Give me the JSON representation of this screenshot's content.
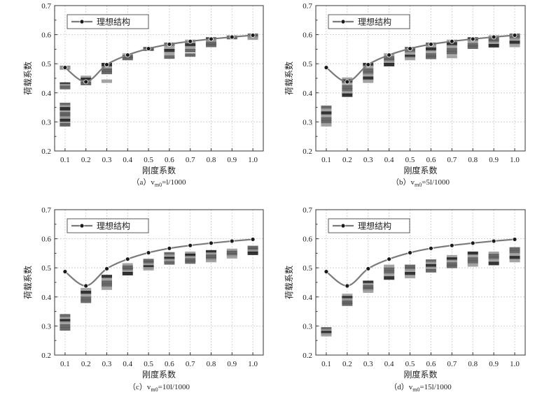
{
  "colors": {
    "curve": "#7a7a7a",
    "marker": "#1a1a1a",
    "grid": "#c8c8c8",
    "frame": "#333333",
    "bar_dark": "#1e1e1e",
    "bar_mid": "#5a5a5a",
    "bar_light": "#9a9a9a"
  },
  "chart_data": [
    {
      "type": "scatter",
      "panel": "a",
      "caption": "（a）v",
      "caption_sub": "m0",
      "caption_tail": "=l/1000",
      "xlabel": "刚度系数",
      "ylabel": "荷载系数",
      "xticks": [
        "0.1",
        "0.2",
        "0.3",
        "0.4",
        "0.5",
        "0.6",
        "0.7",
        "0.8",
        "0.9",
        "1.0"
      ],
      "yticks": [
        "0.2",
        "0.3",
        "0.4",
        "0.5",
        "0.6",
        "0.7"
      ],
      "xlim": [
        0.05,
        1.05
      ],
      "ylim": [
        0.2,
        0.7
      ],
      "legend": "理想结构",
      "ideal": {
        "x": [
          0.1,
          0.2,
          0.3,
          0.4,
          0.5,
          0.6,
          0.7,
          0.8,
          0.9,
          1.0
        ],
        "y": [
          0.487,
          0.438,
          0.497,
          0.53,
          0.552,
          0.567,
          0.577,
          0.585,
          0.592,
          0.598
        ]
      },
      "clusters": [
        {
          "x": 0.1,
          "values": [
            0.487,
            0.485,
            0.43,
            0.425,
            0.418,
            0.36,
            0.352,
            0.345,
            0.333,
            0.328,
            0.32,
            0.313,
            0.305,
            0.295,
            0.29
          ]
        },
        {
          "x": 0.2,
          "values": [
            0.453,
            0.446,
            0.438,
            0.432
          ]
        },
        {
          "x": 0.3,
          "values": [
            0.497,
            0.485,
            0.478,
            0.47,
            0.44
          ]
        },
        {
          "x": 0.4,
          "values": [
            0.53,
            0.524,
            0.518
          ]
        },
        {
          "x": 0.5,
          "values": [
            0.552,
            0.55
          ]
        },
        {
          "x": 0.6,
          "values": [
            0.567,
            0.555,
            0.545,
            0.535,
            0.523
          ]
        },
        {
          "x": 0.7,
          "values": [
            0.577,
            0.565,
            0.555,
            0.545,
            0.53
          ]
        },
        {
          "x": 0.8,
          "values": [
            0.585,
            0.58,
            0.57,
            0.563
          ]
        },
        {
          "x": 0.9,
          "values": [
            0.592,
            0.59
          ]
        },
        {
          "x": 1.0,
          "values": [
            0.598,
            0.593,
            0.588
          ]
        }
      ]
    },
    {
      "type": "scatter",
      "panel": "b",
      "caption": "（b）v",
      "caption_sub": "m0",
      "caption_tail": "=5l/1000",
      "xlabel": "刚度系数",
      "ylabel": "荷载系数",
      "xticks": [
        "0.1",
        "0.2",
        "0.3",
        "0.4",
        "0.5",
        "0.6",
        "0.7",
        "0.8",
        "0.9",
        "1.0"
      ],
      "yticks": [
        "0.2",
        "0.3",
        "0.4",
        "0.5",
        "0.6",
        "0.7"
      ],
      "xlim": [
        0.05,
        1.05
      ],
      "ylim": [
        0.2,
        0.7
      ],
      "legend": "理想结构",
      "ideal": {
        "x": [
          0.1,
          0.2,
          0.3,
          0.4,
          0.5,
          0.6,
          0.7,
          0.8,
          0.9,
          1.0
        ],
        "y": [
          0.487,
          0.438,
          0.497,
          0.53,
          0.552,
          0.567,
          0.577,
          0.585,
          0.592,
          0.598
        ]
      },
      "clusters": [
        {
          "x": 0.1,
          "values": [
            0.35,
            0.34,
            0.33,
            0.32,
            0.31,
            0.3,
            0.29
          ]
        },
        {
          "x": 0.2,
          "values": [
            0.447,
            0.44,
            0.43,
            0.42,
            0.41,
            0.4,
            0.392
          ]
        },
        {
          "x": 0.3,
          "values": [
            0.497,
            0.488,
            0.478,
            0.468,
            0.46,
            0.45,
            0.44
          ]
        },
        {
          "x": 0.4,
          "values": [
            0.53,
            0.52,
            0.512,
            0.505,
            0.497
          ]
        },
        {
          "x": 0.5,
          "values": [
            0.552,
            0.543,
            0.535,
            0.525,
            0.518
          ]
        },
        {
          "x": 0.6,
          "values": [
            0.567,
            0.56,
            0.55,
            0.54,
            0.53,
            0.522
          ]
        },
        {
          "x": 0.7,
          "values": [
            0.577,
            0.568,
            0.558,
            0.548,
            0.538,
            0.525
          ]
        },
        {
          "x": 0.8,
          "values": [
            0.585,
            0.575,
            0.565,
            0.557
          ]
        },
        {
          "x": 0.9,
          "values": [
            0.592,
            0.585,
            0.578,
            0.57,
            0.562
          ]
        },
        {
          "x": 1.0,
          "values": [
            0.598,
            0.59,
            0.582,
            0.573,
            0.563
          ]
        }
      ]
    },
    {
      "type": "scatter",
      "panel": "c",
      "caption": "（c）v",
      "caption_sub": "m0",
      "caption_tail": "=10l/1000",
      "xlabel": "刚度系数",
      "ylabel": "荷载系数",
      "xticks": [
        "0.1",
        "0.2",
        "0.3",
        "0.4",
        "0.5",
        "0.6",
        "0.7",
        "0.8",
        "0.9",
        "1.0"
      ],
      "yticks": [
        "0.2",
        "0.3",
        "0.4",
        "0.5",
        "0.6",
        "0.7"
      ],
      "xlim": [
        0.05,
        1.05
      ],
      "ylim": [
        0.2,
        0.7
      ],
      "legend": "理想结构",
      "ideal": {
        "x": [
          0.1,
          0.2,
          0.3,
          0.4,
          0.5,
          0.6,
          0.7,
          0.8,
          0.9,
          1.0
        ],
        "y": [
          0.487,
          0.438,
          0.497,
          0.53,
          0.552,
          0.567,
          0.577,
          0.585,
          0.592,
          0.598
        ]
      },
      "clusters": [
        {
          "x": 0.1,
          "values": [
            0.335,
            0.325,
            0.318,
            0.31,
            0.3,
            0.29
          ]
        },
        {
          "x": 0.2,
          "values": [
            0.425,
            0.415,
            0.405,
            0.395,
            0.385
          ]
        },
        {
          "x": 0.3,
          "values": [
            0.47,
            0.46,
            0.45,
            0.44,
            0.43
          ]
        },
        {
          "x": 0.4,
          "values": [
            0.51,
            0.502,
            0.495,
            0.487,
            0.48
          ]
        },
        {
          "x": 0.5,
          "values": [
            0.525,
            0.518,
            0.51,
            0.503,
            0.497
          ]
        },
        {
          "x": 0.6,
          "values": [
            0.548,
            0.54,
            0.532,
            0.525,
            0.517
          ]
        },
        {
          "x": 0.7,
          "values": [
            0.55,
            0.543,
            0.535,
            0.527,
            0.52
          ]
        },
        {
          "x": 0.8,
          "values": [
            0.555,
            0.547,
            0.54,
            0.532,
            0.525
          ]
        },
        {
          "x": 0.9,
          "values": [
            0.56,
            0.553,
            0.545,
            0.538
          ]
        },
        {
          "x": 1.0,
          "values": [
            0.57,
            0.563,
            0.557,
            0.55
          ]
        }
      ]
    },
    {
      "type": "scatter",
      "panel": "d",
      "caption": "（d）v",
      "caption_sub": "m0",
      "caption_tail": "=15l/1000",
      "xlabel": "刚度系数",
      "ylabel": "荷载系数",
      "xticks": [
        "0.1",
        "0.2",
        "0.3",
        "0.4",
        "0.5",
        "0.6",
        "0.7",
        "0.8",
        "0.9",
        "1.0"
      ],
      "yticks": [
        "0.2",
        "0.3",
        "0.4",
        "0.5",
        "0.6",
        "0.7"
      ],
      "xlim": [
        0.05,
        1.05
      ],
      "ylim": [
        0.2,
        0.7
      ],
      "legend": "理想结构",
      "ideal": {
        "x": [
          0.1,
          0.2,
          0.3,
          0.4,
          0.5,
          0.6,
          0.7,
          0.8,
          0.9,
          1.0
        ],
        "y": [
          0.487,
          0.438,
          0.497,
          0.53,
          0.552,
          0.567,
          0.577,
          0.585,
          0.592,
          0.598
        ]
      },
      "clusters": [
        {
          "x": 0.1,
          "values": [
            0.29,
            0.283,
            0.277,
            0.27
          ]
        },
        {
          "x": 0.2,
          "values": [
            0.405,
            0.397,
            0.39,
            0.382,
            0.375
          ]
        },
        {
          "x": 0.3,
          "values": [
            0.45,
            0.442,
            0.435,
            0.427,
            0.42
          ]
        },
        {
          "x": 0.4,
          "values": [
            0.505,
            0.495,
            0.485,
            0.475,
            0.465
          ]
        },
        {
          "x": 0.5,
          "values": [
            0.505,
            0.497,
            0.49,
            0.48,
            0.47
          ]
        },
        {
          "x": 0.6,
          "values": [
            0.523,
            0.515,
            0.507,
            0.498,
            0.49
          ]
        },
        {
          "x": 0.7,
          "values": [
            0.538,
            0.53,
            0.522,
            0.513,
            0.505
          ]
        },
        {
          "x": 0.8,
          "values": [
            0.55,
            0.54,
            0.53,
            0.52,
            0.51
          ]
        },
        {
          "x": 0.9,
          "values": [
            0.55,
            0.542,
            0.533,
            0.525,
            0.515
          ]
        },
        {
          "x": 1.0,
          "values": [
            0.565,
            0.555,
            0.545,
            0.535,
            0.525
          ]
        }
      ]
    }
  ]
}
